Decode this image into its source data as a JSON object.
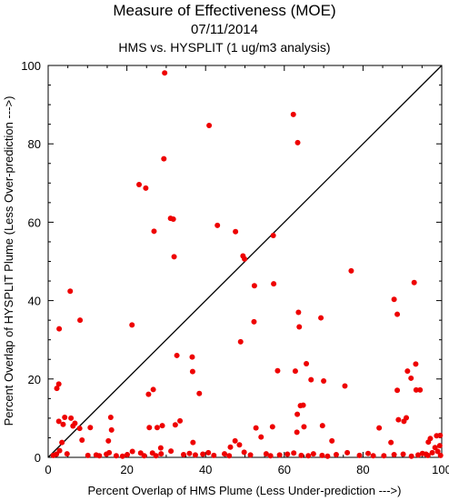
{
  "chart_data": {
    "type": "scatter",
    "title": "Measure of Effectiveness (MOE)",
    "subtitle": "07/11/2014",
    "subtitle2": "HMS vs. HYSPLIT  (1 ug/m3 analysis)",
    "xlabel": "Percent Overlap of HMS Plume (Less Under-prediction --->)",
    "ylabel": "Percent Overlap of HYSPLIT Plume (Less Over-prediction --->)",
    "xlim": [
      0,
      100
    ],
    "ylim": [
      0,
      100
    ],
    "xticks": [
      "0",
      "20",
      "40",
      "60",
      "80",
      "100"
    ],
    "yticks": [
      "0",
      "20",
      "40",
      "60",
      "80",
      "100"
    ],
    "reference_line": "y = x",
    "grid": false,
    "marker_color": "#ee0000",
    "points": [
      [
        29.6,
        98.1
      ],
      [
        40.9,
        84.7
      ],
      [
        62.3,
        87.5
      ],
      [
        63.4,
        80.3
      ],
      [
        29.4,
        76.2
      ],
      [
        23.1,
        69.6
      ],
      [
        24.8,
        68.7
      ],
      [
        31.1,
        61.0
      ],
      [
        31.8,
        60.8
      ],
      [
        43.0,
        59.2
      ],
      [
        47.6,
        57.6
      ],
      [
        26.9,
        57.7
      ],
      [
        57.2,
        56.6
      ],
      [
        49.5,
        51.4
      ],
      [
        49.9,
        50.6
      ],
      [
        32.0,
        51.2
      ],
      [
        77.0,
        47.6
      ],
      [
        93.0,
        44.6
      ],
      [
        57.3,
        44.3
      ],
      [
        52.4,
        43.8
      ],
      [
        5.6,
        42.4
      ],
      [
        87.9,
        40.3
      ],
      [
        63.6,
        37.0
      ],
      [
        88.7,
        36.5
      ],
      [
        8.1,
        35.0
      ],
      [
        52.3,
        34.6
      ],
      [
        69.3,
        35.6
      ],
      [
        21.3,
        33.8
      ],
      [
        2.8,
        32.8
      ],
      [
        63.8,
        33.3
      ],
      [
        48.9,
        29.5
      ],
      [
        32.7,
        26.0
      ],
      [
        36.6,
        25.6
      ],
      [
        36.7,
        21.9
      ],
      [
        58.3,
        22.1
      ],
      [
        62.8,
        22.0
      ],
      [
        65.6,
        23.9
      ],
      [
        66.8,
        19.8
      ],
      [
        70.0,
        19.5
      ],
      [
        75.4,
        18.2
      ],
      [
        92.2,
        20.2
      ],
      [
        91.3,
        22.0
      ],
      [
        93.4,
        23.8
      ],
      [
        2.7,
        18.7
      ],
      [
        2.2,
        17.6
      ],
      [
        26.7,
        17.3
      ],
      [
        25.5,
        16.1
      ],
      [
        38.4,
        16.3
      ],
      [
        88.7,
        17.1
      ],
      [
        93.5,
        17.2
      ],
      [
        94.5,
        17.2
      ],
      [
        64.1,
        13.2
      ],
      [
        64.8,
        13.3
      ],
      [
        63.3,
        11.0
      ],
      [
        2.7,
        9.2
      ],
      [
        4.2,
        10.2
      ],
      [
        5.8,
        10.0
      ],
      [
        6.8,
        8.7
      ],
      [
        3.8,
        8.4
      ],
      [
        6.3,
        8.0
      ],
      [
        8.0,
        7.4
      ],
      [
        10.7,
        7.6
      ],
      [
        15.9,
        10.2
      ],
      [
        16.1,
        7.0
      ],
      [
        25.7,
        7.6
      ],
      [
        27.7,
        7.6
      ],
      [
        29.0,
        8.1
      ],
      [
        32.3,
        8.3
      ],
      [
        33.5,
        9.3
      ],
      [
        52.8,
        7.5
      ],
      [
        57.0,
        7.8
      ],
      [
        63.2,
        6.4
      ],
      [
        65.0,
        7.8
      ],
      [
        69.7,
        8.1
      ],
      [
        84.1,
        7.5
      ],
      [
        89.0,
        9.6
      ],
      [
        90.4,
        9.2
      ],
      [
        91.0,
        10.1
      ],
      [
        3.5,
        3.8
      ],
      [
        8.6,
        4.4
      ],
      [
        15.3,
        4.2
      ],
      [
        28.6,
        2.4
      ],
      [
        36.8,
        3.8
      ],
      [
        46.3,
        2.6
      ],
      [
        47.5,
        4.2
      ],
      [
        48.6,
        3.2
      ],
      [
        54.1,
        5.2
      ],
      [
        72.1,
        4.2
      ],
      [
        87.1,
        3.8
      ],
      [
        96.6,
        3.9
      ],
      [
        98.7,
        5.5
      ],
      [
        99.6,
        5.6
      ],
      [
        1.3,
        0.5
      ],
      [
        2.1,
        0.8
      ],
      [
        2.9,
        1.7
      ],
      [
        4.8,
        0.9
      ],
      [
        10.1,
        0.5
      ],
      [
        12.2,
        0.6
      ],
      [
        13.0,
        0.4
      ],
      [
        14.8,
        0.8
      ],
      [
        15.5,
        1.2
      ],
      [
        17.3,
        0.4
      ],
      [
        18.9,
        0.3
      ],
      [
        20.1,
        0.7
      ],
      [
        21.4,
        1.5
      ],
      [
        23.5,
        1.1
      ],
      [
        24.4,
        0.4
      ],
      [
        26.5,
        1.1
      ],
      [
        27.4,
        0.4
      ],
      [
        28.7,
        0.9
      ],
      [
        31.2,
        1.6
      ],
      [
        34.4,
        0.7
      ],
      [
        35.9,
        1.0
      ],
      [
        37.4,
        0.6
      ],
      [
        39.3,
        0.8
      ],
      [
        40.7,
        1.2
      ],
      [
        42.1,
        0.5
      ],
      [
        44.8,
        0.9
      ],
      [
        46.0,
        0.4
      ],
      [
        49.8,
        1.3
      ],
      [
        51.4,
        0.6
      ],
      [
        55.4,
        0.9
      ],
      [
        56.5,
        0.4
      ],
      [
        58.8,
        0.6
      ],
      [
        60.8,
        0.8
      ],
      [
        62.4,
        1.1
      ],
      [
        64.3,
        0.5
      ],
      [
        66.1,
        0.4
      ],
      [
        67.4,
        0.9
      ],
      [
        69.6,
        0.5
      ],
      [
        71.0,
        0.3
      ],
      [
        73.2,
        0.7
      ],
      [
        76.0,
        1.2
      ],
      [
        79.1,
        0.5
      ],
      [
        81.3,
        1.0
      ],
      [
        82.6,
        0.4
      ],
      [
        85.3,
        0.4
      ],
      [
        87.9,
        0.7
      ],
      [
        90.2,
        0.8
      ],
      [
        92.3,
        0.3
      ],
      [
        94.0,
        0.6
      ],
      [
        95.1,
        1.0
      ],
      [
        96.5,
        0.5
      ],
      [
        97.6,
        1.2
      ],
      [
        98.3,
        2.5
      ],
      [
        99.0,
        1.5
      ],
      [
        99.5,
        3.0
      ],
      [
        99.7,
        0.5
      ],
      [
        97.1,
        4.8
      ],
      [
        96.0,
        0.8
      ]
    ]
  }
}
